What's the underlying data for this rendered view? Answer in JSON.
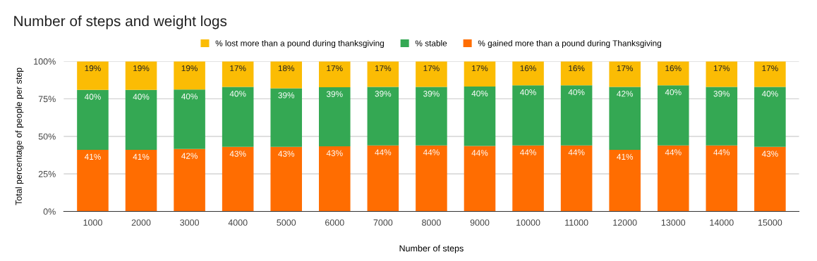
{
  "chart_data": {
    "type": "bar",
    "title": "Number of steps and weight logs",
    "xlabel": "Number of steps",
    "ylabel": "Total percentage of people per step",
    "categories": [
      "1000",
      "2000",
      "3000",
      "4000",
      "5000",
      "6000",
      "7000",
      "8000",
      "9000",
      "10000",
      "11000",
      "12000",
      "13000",
      "14000",
      "15000"
    ],
    "stacked": true,
    "series": [
      {
        "name": "% gained more than a pound during Thanksgiving",
        "color": "#ff6d01",
        "values": [
          41,
          41,
          41.6,
          43,
          43,
          43.4,
          44,
          44,
          43.6,
          44,
          44,
          41,
          44,
          44,
          43
        ],
        "value_labels": [
          "41%",
          "41%",
          "42%",
          "43%",
          "43%",
          "43%",
          "44%",
          "44%",
          "44%",
          "44%",
          "44%",
          "41%",
          "44%",
          "44%",
          "43%"
        ]
      },
      {
        "name": "% stable",
        "color": "#34a853",
        "values": [
          40,
          40,
          39.6,
          40,
          39,
          39.4,
          39,
          39,
          39.6,
          40,
          40,
          42,
          40,
          39,
          40
        ],
        "value_labels": [
          "40%",
          "40%",
          "40%",
          "40%",
          "39%",
          "39%",
          "39%",
          "39%",
          "40%",
          "40%",
          "40%",
          "42%",
          "40%",
          "39%",
          "40%"
        ]
      },
      {
        "name": "% lost more than a pound during thanksgiving",
        "color": "#fbbc04",
        "values": [
          19,
          19,
          18.8,
          17,
          18,
          17.2,
          17,
          17,
          16.8,
          16,
          16,
          17,
          16,
          17,
          17
        ],
        "value_labels": [
          "19%",
          "19%",
          "19%",
          "17%",
          "18%",
          "17%",
          "17%",
          "17%",
          "17%",
          "16%",
          "16%",
          "17%",
          "16%",
          "17%",
          "17%"
        ]
      }
    ],
    "ylim": [
      0,
      100
    ],
    "yticks": [
      {
        "value": 0,
        "label": "0%"
      },
      {
        "value": 25,
        "label": "25%"
      },
      {
        "value": 50,
        "label": "50%"
      },
      {
        "value": 75,
        "label": "75%"
      },
      {
        "value": 100,
        "label": "100%"
      }
    ],
    "grid": "y",
    "legend": "top"
  }
}
